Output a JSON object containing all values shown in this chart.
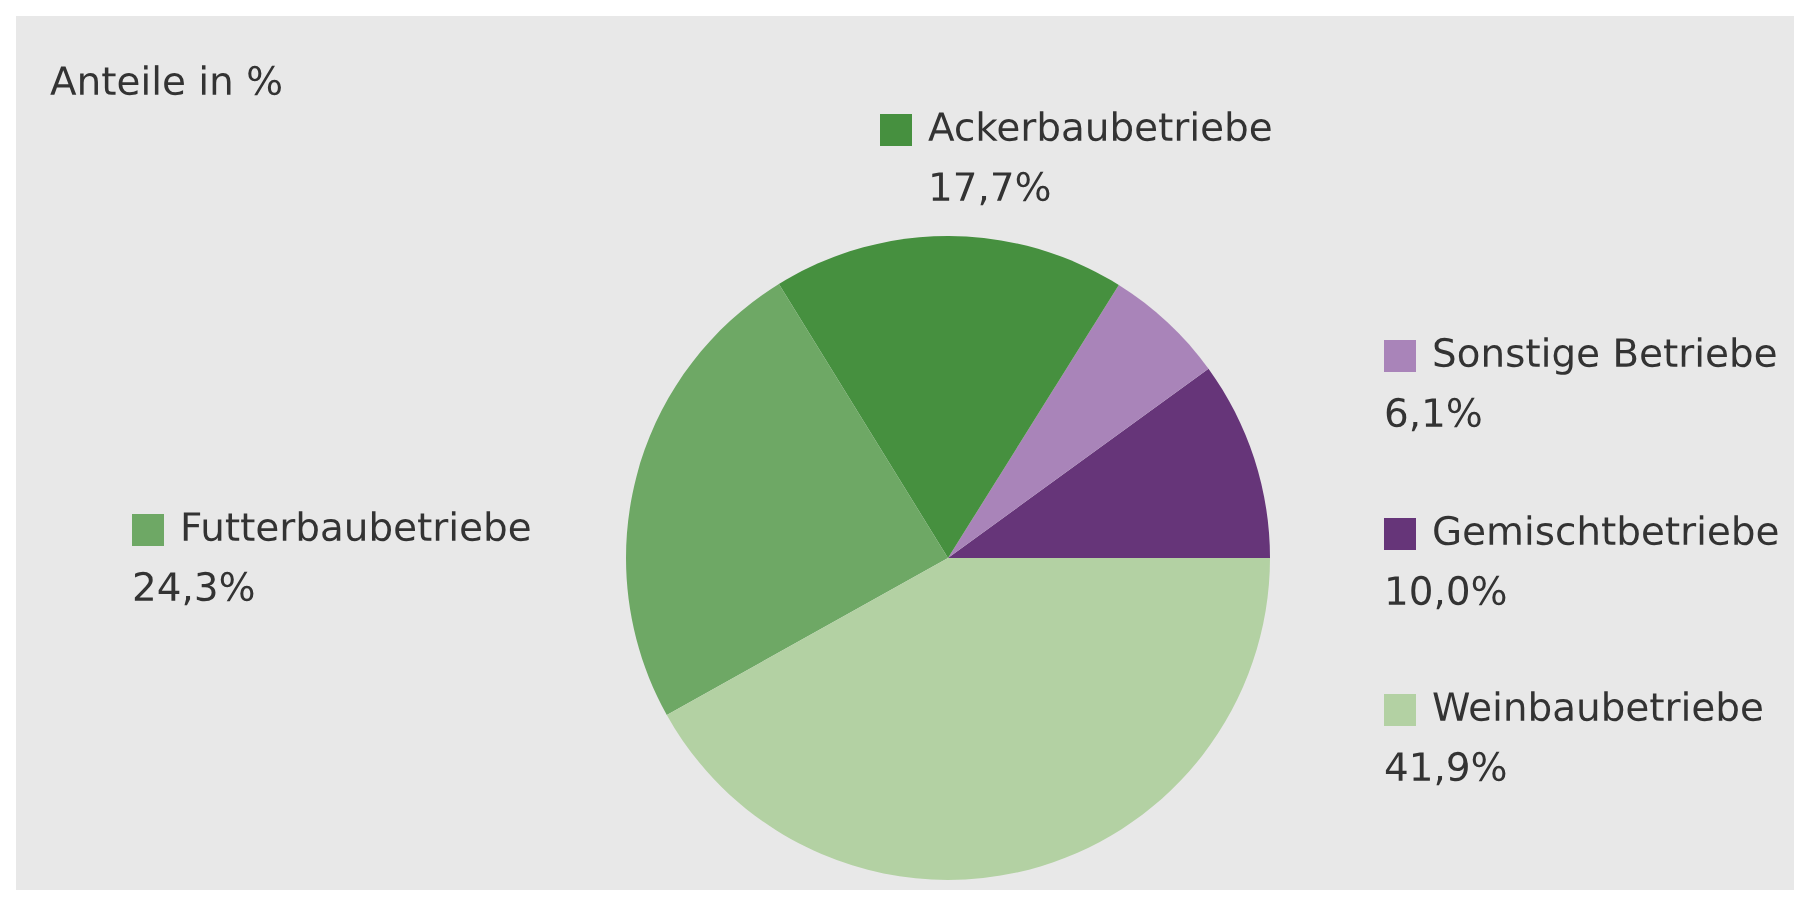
{
  "chart_data": {
    "type": "pie",
    "title": "Anteile in %",
    "categories": [
      "Gemischtbetriebe",
      "Sonstige Betriebe",
      "Ackerbaubetriebe",
      "Futterbaubetriebe",
      "Weinbaubetriebe"
    ],
    "values": [
      10.0,
      6.1,
      17.7,
      24.3,
      41.9
    ],
    "value_labels": [
      "10,0%",
      "6,1%",
      "17,7%",
      "24,3%",
      "41,9%"
    ],
    "colors": [
      "#663579",
      "#a984b9",
      "#46903f",
      "#6ea865",
      "#b3d1a3"
    ],
    "legend": "right"
  }
}
